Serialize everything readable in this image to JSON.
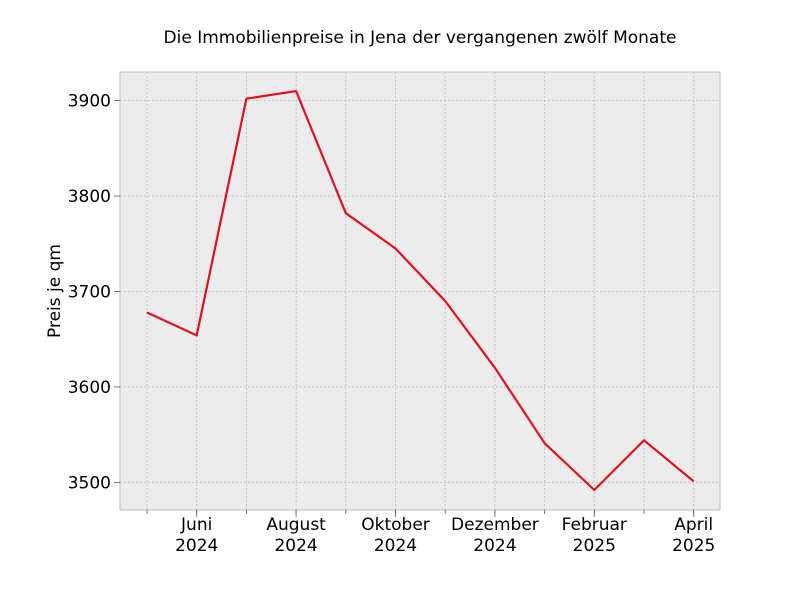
{
  "chart_data": {
    "type": "line",
    "title": "Die Immobilienpreise in Jena der vergangenen zwölf Monate",
    "xlabel": "",
    "ylabel": "Preis je qm",
    "x": [
      "2024-05",
      "2024-06",
      "2024-07",
      "2024-08",
      "2024-09",
      "2024-10",
      "2024-11",
      "2024-12",
      "2025-01",
      "2025-02",
      "2025-03",
      "2025-04"
    ],
    "series": [
      {
        "values": [
          3678,
          3654,
          3902,
          3910,
          3782,
          3745,
          3690,
          3620,
          3541,
          3492,
          3544,
          3501
        ]
      }
    ],
    "x_ticks": [
      {
        "x": "2024-06",
        "month": "Juni",
        "year": "2024"
      },
      {
        "x": "2024-08",
        "month": "August",
        "year": "2024"
      },
      {
        "x": "2024-10",
        "month": "Oktober",
        "year": "2024"
      },
      {
        "x": "2024-12",
        "month": "Dezember",
        "year": "2024"
      },
      {
        "x": "2025-02",
        "month": "Februar",
        "year": "2025"
      },
      {
        "x": "2025-04",
        "month": "April",
        "year": "2025"
      }
    ],
    "y_ticks": [
      "3500",
      "3600",
      "3700",
      "3800",
      "3900"
    ],
    "ylim": [
      3471,
      3930
    ],
    "grid": true,
    "line_color": "#e01020",
    "background_color": "#ececec"
  }
}
